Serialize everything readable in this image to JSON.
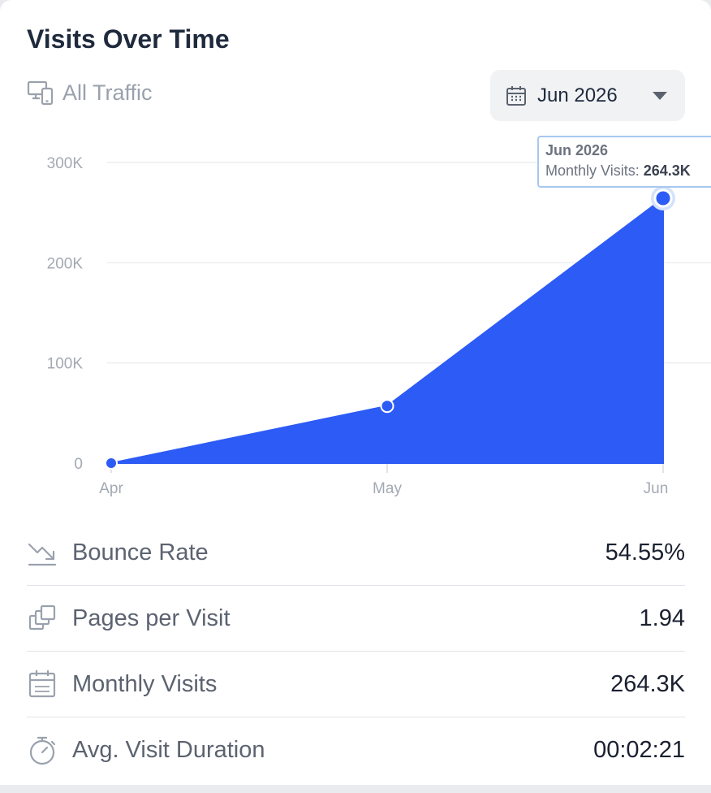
{
  "header": {
    "title": "Visits Over Time",
    "traffic_label": "All Traffic",
    "date_select": {
      "value": "Jun 2026"
    }
  },
  "tooltip": {
    "title": "Jun 2026",
    "label": "Monthly Visits: ",
    "value": "264.3K"
  },
  "chart_data": {
    "type": "area",
    "x": [
      "Apr",
      "May",
      "Jun"
    ],
    "series": [
      {
        "values": [
          0,
          57000,
          264300
        ]
      }
    ],
    "y_ticks": [
      0,
      100000,
      200000,
      300000
    ],
    "y_tick_labels": [
      "0",
      "100K",
      "200K",
      "300K"
    ],
    "ylim": [
      0,
      300000
    ],
    "grid": true,
    "highlighted_index": 2,
    "fill_color": "#2d5bf5"
  },
  "metrics": [
    {
      "icon": "trend-down-icon",
      "label": "Bounce Rate",
      "value": "54.55%"
    },
    {
      "icon": "pages-icon",
      "label": "Pages per Visit",
      "value": "1.94"
    },
    {
      "icon": "calendar-icon",
      "label": "Monthly Visits",
      "value": "264.3K"
    },
    {
      "icon": "stopwatch-icon",
      "label": "Avg. Visit Duration",
      "value": "00:02:21"
    }
  ]
}
